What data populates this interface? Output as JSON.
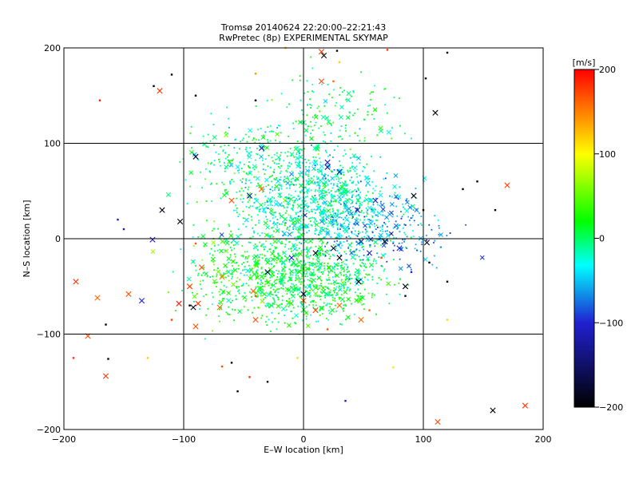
{
  "chart_data": {
    "type": "scatter",
    "title": "Tromsø 20140624 22:20:00–22:21:43",
    "subtitle": "RwPretec (8p) EXPERIMENTAL SKYMAP",
    "xlabel": "E–W location [km]",
    "ylabel": "N–S location [km]",
    "xlim": [
      -200,
      200
    ],
    "ylim": [
      -200,
      200
    ],
    "xticks": [
      "-200",
      "-100",
      "0",
      "100",
      "200"
    ],
    "yticks": [
      "-200",
      "-100",
      "0",
      "100",
      "200"
    ],
    "grid": true,
    "colorbar": {
      "label": "[m/s]",
      "ticks": [
        "-200",
        "-100",
        "0",
        "100",
        "200"
      ],
      "range": [
        -200,
        200
      ],
      "colormap": [
        "#000000",
        "#2020d0",
        "#00ffff",
        "#00ff00",
        "#ffff00",
        "#ff0000"
      ]
    },
    "series": [
      {
        "marker": "x",
        "points": [
          [
            -120,
            155,
            180
          ],
          [
            -165,
            -144,
            180
          ],
          [
            -172,
            -62,
            160
          ],
          [
            -146,
            -58,
            170
          ],
          [
            -190,
            -45,
            180
          ],
          [
            -180,
            -102,
            170
          ],
          [
            -104,
            -68,
            190
          ],
          [
            -88,
            -68,
            180
          ],
          [
            -95,
            -50,
            175
          ],
          [
            -40,
            -85,
            170
          ],
          [
            170,
            56,
            175
          ],
          [
            185,
            -175,
            180
          ],
          [
            112,
            -192,
            170
          ],
          [
            15,
            165,
            170
          ],
          [
            15,
            196,
            180
          ],
          [
            -60,
            40,
            170
          ],
          [
            -35,
            52,
            160
          ],
          [
            -68,
            -40,
            150
          ],
          [
            48,
            -85,
            160
          ],
          [
            10,
            -75,
            170
          ],
          [
            30,
            -70,
            160
          ],
          [
            -42,
            -55,
            160
          ],
          [
            -85,
            -30,
            170
          ],
          [
            -70,
            -72,
            160
          ],
          [
            0,
            -65,
            160
          ],
          [
            -90,
            -92,
            170
          ],
          [
            17,
            192,
            -200
          ],
          [
            110,
            132,
            -200
          ],
          [
            158,
            -180,
            -200
          ],
          [
            -118,
            30,
            -190
          ],
          [
            -103,
            18,
            -195
          ],
          [
            -92,
            -72,
            -190
          ],
          [
            -30,
            -35,
            -180
          ],
          [
            0,
            -58,
            -185
          ],
          [
            46,
            -45,
            -190
          ],
          [
            85,
            -50,
            -200
          ],
          [
            92,
            45,
            -190
          ],
          [
            -90,
            86,
            -190
          ],
          [
            10,
            -15,
            -185
          ],
          [
            30,
            -20,
            -195
          ],
          [
            25,
            -10,
            -180
          ],
          [
            68,
            -3,
            -195
          ],
          [
            103,
            -4,
            -190
          ],
          [
            -126,
            -1,
            -105
          ],
          [
            -135,
            -65,
            -100
          ],
          [
            -35,
            95,
            -110
          ],
          [
            20,
            80,
            -100
          ],
          [
            30,
            70,
            -110
          ],
          [
            60,
            40,
            -100
          ],
          [
            -45,
            45,
            -105
          ],
          [
            20,
            75,
            -120
          ],
          [
            45,
            30,
            -110
          ],
          [
            -10,
            -20,
            -100
          ],
          [
            55,
            -15,
            -110
          ],
          [
            80,
            -10,
            -100
          ],
          [
            48,
            -3,
            -120
          ]
        ]
      },
      {
        "marker": "dot",
        "points": [
          [
            -125,
            160,
            -200
          ],
          [
            -110,
            172,
            -200
          ],
          [
            -90,
            150,
            -200
          ],
          [
            -40,
            145,
            -200
          ],
          [
            102,
            168,
            -200
          ],
          [
            28,
            197,
            -200
          ],
          [
            120,
            195,
            -200
          ],
          [
            105,
            -25,
            -200
          ],
          [
            120,
            -45,
            -200
          ],
          [
            160,
            30,
            -200
          ],
          [
            145,
            60,
            -200
          ],
          [
            133,
            52,
            -200
          ],
          [
            -165,
            -90,
            -200
          ],
          [
            -163,
            -126,
            -200
          ],
          [
            -55,
            -160,
            -200
          ],
          [
            -30,
            -150,
            -200
          ],
          [
            85,
            -60,
            -180
          ],
          [
            100,
            30,
            -200
          ],
          [
            -95,
            -70,
            -200
          ],
          [
            -60,
            -130,
            -200
          ],
          [
            35,
            -170,
            -110
          ],
          [
            90,
            -35,
            -100
          ],
          [
            -155,
            20,
            -110
          ],
          [
            -150,
            10,
            -120
          ],
          [
            -170,
            145,
            190
          ],
          [
            -192,
            -125,
            180
          ],
          [
            -45,
            -145,
            180
          ],
          [
            -68,
            -134,
            170
          ],
          [
            -40,
            -60,
            170
          ],
          [
            -110,
            -85,
            175
          ],
          [
            25,
            165,
            160
          ],
          [
            70,
            198,
            175
          ],
          [
            65,
            -20,
            170
          ],
          [
            -90,
            -5,
            165
          ],
          [
            55,
            -75,
            160
          ],
          [
            20,
            -95,
            165
          ],
          [
            -40,
            173,
            140
          ],
          [
            30,
            185,
            120
          ],
          [
            -15,
            200,
            130
          ],
          [
            -5,
            -125,
            115
          ],
          [
            75,
            -135,
            110
          ],
          [
            120,
            -85,
            115
          ],
          [
            -130,
            -125,
            120
          ]
        ]
      }
    ]
  }
}
